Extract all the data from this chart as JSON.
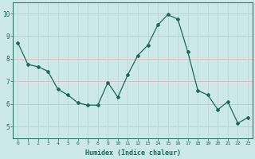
{
  "x": [
    0,
    1,
    2,
    3,
    4,
    5,
    6,
    7,
    8,
    9,
    10,
    11,
    12,
    13,
    14,
    15,
    16,
    17,
    18,
    19,
    20,
    21,
    22,
    23
  ],
  "y": [
    8.7,
    7.75,
    7.65,
    7.45,
    6.65,
    6.4,
    6.05,
    5.95,
    5.95,
    6.95,
    6.3,
    7.3,
    8.15,
    8.6,
    9.5,
    9.95,
    9.75,
    8.3,
    6.6,
    6.4,
    5.75,
    6.1,
    5.15,
    5.4
  ],
  "xlabel": "Humidex (Indice chaleur)",
  "ylim": [
    4.5,
    10.5
  ],
  "xlim": [
    -0.5,
    23.5
  ],
  "yticks": [
    5,
    6,
    7,
    8,
    9,
    10
  ],
  "xticks": [
    0,
    1,
    2,
    3,
    4,
    5,
    6,
    7,
    8,
    9,
    10,
    11,
    12,
    13,
    14,
    15,
    16,
    17,
    18,
    19,
    20,
    21,
    22,
    23
  ],
  "line_color": "#1a6b5a",
  "marker_color": "#1a6b5a",
  "bg_color": "#cce8e8",
  "grid_color_h": "#e8b8b8",
  "grid_color_v": "#b8d8d8",
  "axis_label_color": "#1a6b5a",
  "tick_color": "#1a6b5a",
  "spine_color": "#1a6b5a"
}
